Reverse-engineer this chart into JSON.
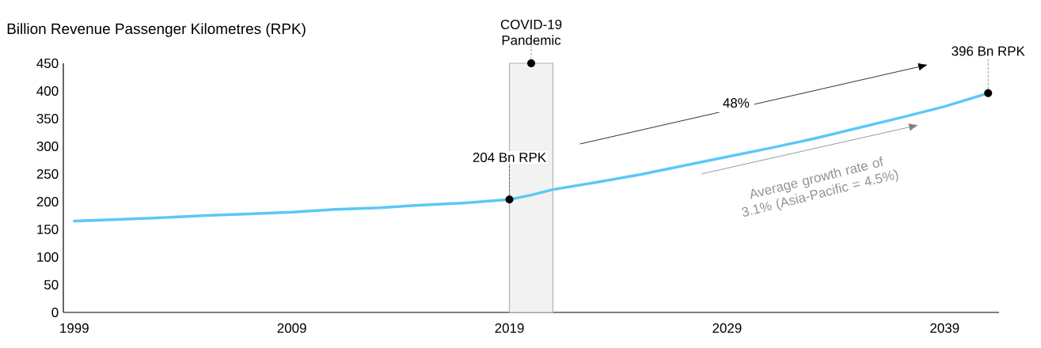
{
  "chart_data": {
    "type": "line",
    "ylabel": "Billion Revenue Passenger Kilometres (RPK)",
    "x": [
      1999,
      2001,
      2003,
      2005,
      2007,
      2009,
      2011,
      2013,
      2015,
      2017,
      2019,
      2020,
      2021,
      2023,
      2025,
      2027,
      2029,
      2031,
      2033,
      2035,
      2037,
      2039,
      2041
    ],
    "series": [
      {
        "color": "#5bc8f5",
        "values": [
          165,
          168,
          171,
          175,
          178,
          181,
          186,
          189,
          194,
          198,
          204,
          212,
          222,
          235,
          249,
          265,
          281,
          297,
          314,
          333,
          352,
          372,
          396
        ]
      }
    ],
    "xlim": [
      1998.5,
      2041.5
    ],
    "ylim": [
      0,
      450
    ],
    "xticks": [
      1999,
      2009,
      2019,
      2029,
      2039
    ],
    "yticks": [
      0,
      50,
      100,
      150,
      200,
      250,
      300,
      350,
      400,
      450
    ],
    "bands": [
      {
        "axis": "x",
        "from": 2019,
        "to": 2021,
        "label": "COVID-19 Pandemic",
        "color": "#f2f2f2"
      }
    ],
    "annotations": [
      {
        "text": "204 Bn RPK",
        "x": 2019,
        "y": 204
      },
      {
        "text": "396 Bn RPK",
        "x": 2041,
        "y": 396
      },
      "48%",
      "Average growth rate of 3.1% (Asia-Pacific = 4.5%)"
    ]
  }
}
